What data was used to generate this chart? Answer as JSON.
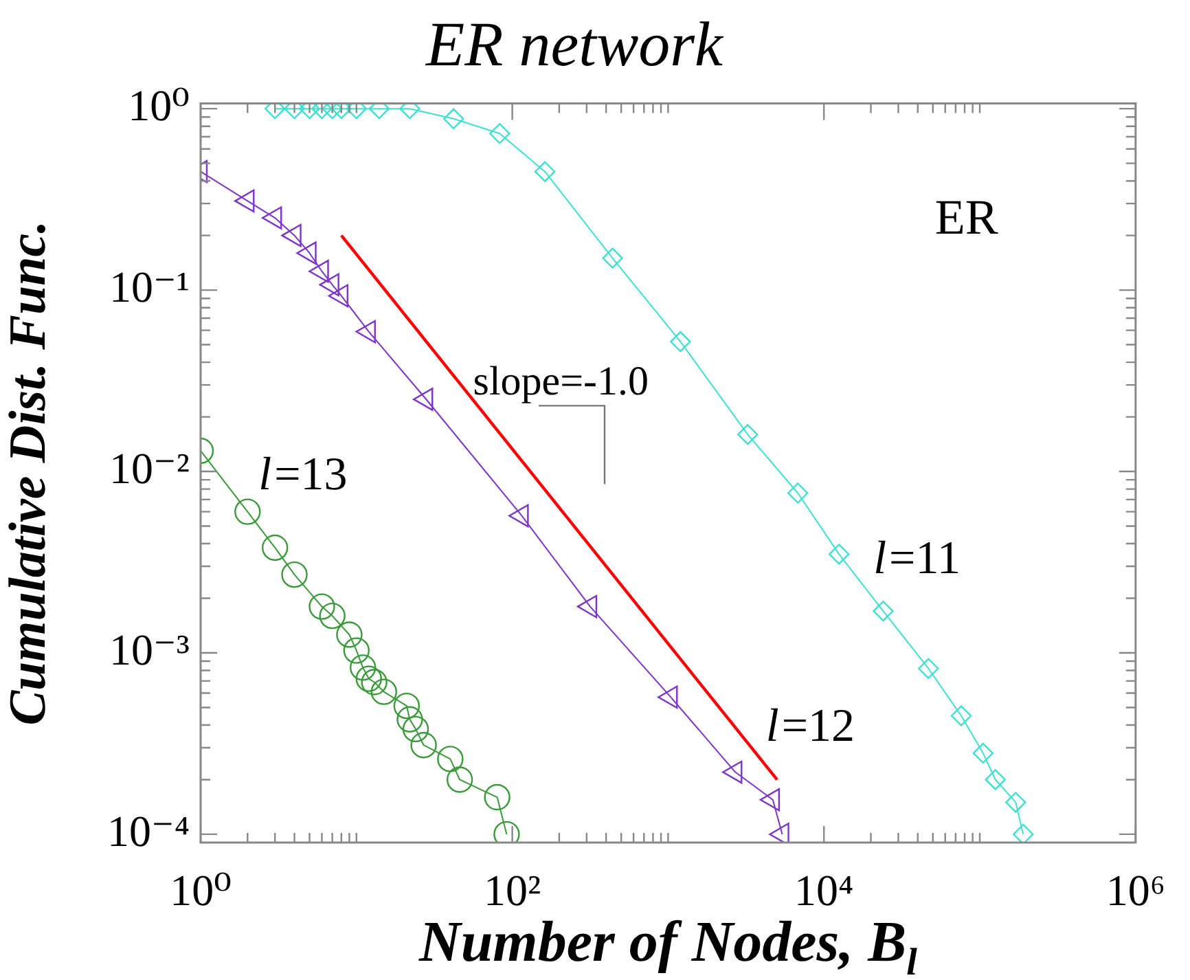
{
  "chart_data": {
    "type": "line",
    "title": "ER network",
    "xlabel": "Number of Nodes, B$_{l}$",
    "ylabel": "Cumulative Dist. Func.",
    "log": "xy",
    "grid": false,
    "legend": false,
    "line_style": "solid",
    "xlim": [
      1,
      1000000
    ],
    "ylim": [
      9e-05,
      1.07
    ],
    "xticks": [
      {
        "value": 1,
        "label": "10⁰"
      },
      {
        "value": 2,
        "label": null
      },
      {
        "value": 3,
        "label": null
      },
      {
        "value": 4,
        "label": null
      },
      {
        "value": 5,
        "label": null
      },
      {
        "value": 6,
        "label": null
      },
      {
        "value": 7,
        "label": null
      },
      {
        "value": 8,
        "label": null
      },
      {
        "value": 9,
        "label": null
      },
      {
        "value": 10,
        "label": null
      },
      {
        "value": 100,
        "label": "10²"
      },
      {
        "value": 200,
        "label": null
      },
      {
        "value": 300,
        "label": null
      },
      {
        "value": 400,
        "label": null
      },
      {
        "value": 500,
        "label": null
      },
      {
        "value": 600,
        "label": null
      },
      {
        "value": 700,
        "label": null
      },
      {
        "value": 800,
        "label": null
      },
      {
        "value": 900,
        "label": null
      },
      {
        "value": 1000,
        "label": null
      },
      {
        "value": 10000,
        "label": "10⁴"
      },
      {
        "value": 20000,
        "label": null
      },
      {
        "value": 30000,
        "label": null
      },
      {
        "value": 40000,
        "label": null
      },
      {
        "value": 50000,
        "label": null
      },
      {
        "value": 60000,
        "label": null
      },
      {
        "value": 70000,
        "label": null
      },
      {
        "value": 80000,
        "label": null
      },
      {
        "value": 90000,
        "label": null
      },
      {
        "value": 100000,
        "label": null
      },
      {
        "value": 1000000,
        "label": "10⁶"
      }
    ],
    "yticks": [
      {
        "value": 0.0001,
        "label": "10⁻⁴"
      },
      {
        "value": 0.0002,
        "label": null
      },
      {
        "value": 0.0003,
        "label": null
      },
      {
        "value": 0.0004,
        "label": null
      },
      {
        "value": 0.0005,
        "label": null
      },
      {
        "value": 0.0006,
        "label": null
      },
      {
        "value": 0.0007,
        "label": null
      },
      {
        "value": 0.0008,
        "label": null
      },
      {
        "value": 0.0009,
        "label": null
      },
      {
        "value": 0.001,
        "label": "10⁻³"
      },
      {
        "value": 0.002,
        "label": null
      },
      {
        "value": 0.003,
        "label": null
      },
      {
        "value": 0.004,
        "label": null
      },
      {
        "value": 0.005,
        "label": null
      },
      {
        "value": 0.006,
        "label": null
      },
      {
        "value": 0.007,
        "label": null
      },
      {
        "value": 0.008,
        "label": null
      },
      {
        "value": 0.009,
        "label": null
      },
      {
        "value": 0.01,
        "label": "10⁻²"
      },
      {
        "value": 0.02,
        "label": null
      },
      {
        "value": 0.03,
        "label": null
      },
      {
        "value": 0.04,
        "label": null
      },
      {
        "value": 0.05,
        "label": null
      },
      {
        "value": 0.06,
        "label": null
      },
      {
        "value": 0.07,
        "label": null
      },
      {
        "value": 0.08,
        "label": null
      },
      {
        "value": 0.09,
        "label": null
      },
      {
        "value": 0.1,
        "label": "10⁻¹"
      },
      {
        "value": 0.2,
        "label": null
      },
      {
        "value": 0.3,
        "label": null
      },
      {
        "value": 0.4,
        "label": null
      },
      {
        "value": 0.5,
        "label": null
      },
      {
        "value": 0.6,
        "label": null
      },
      {
        "value": 0.7,
        "label": null
      },
      {
        "value": 0.8,
        "label": null
      },
      {
        "value": 0.9,
        "label": null
      },
      {
        "value": 1,
        "label": "10⁰"
      }
    ],
    "series": [
      {
        "name": "l=11",
        "color": "#40e0d0",
        "marker": "diamond",
        "x": [
          3,
          4,
          5,
          6,
          7,
          8,
          10,
          14,
          22,
          42,
          83,
          162,
          440,
          1200,
          3240,
          6800,
          12500,
          24000,
          46800,
          76000,
          105000,
          126000,
          170000,
          190000
        ],
        "values": [
          1,
          1,
          1,
          1,
          1,
          1,
          1,
          1,
          1,
          0.88,
          0.73,
          0.45,
          0.15,
          0.052,
          0.016,
          0.0076,
          0.0035,
          0.0017,
          0.00082,
          0.00045,
          0.00028,
          0.0002,
          0.00015,
          0.0001
        ]
      },
      {
        "name": "l=12",
        "color": "#7b35c8",
        "marker": "triangle",
        "x": [
          1,
          2,
          3,
          4,
          5,
          6,
          7,
          8,
          12,
          28,
          115,
          316,
          1040,
          2700,
          4700,
          5400
        ],
        "values": [
          0.45,
          0.31,
          0.25,
          0.2,
          0.16,
          0.127,
          0.107,
          0.093,
          0.059,
          0.025,
          0.0057,
          0.0018,
          0.00057,
          0.00022,
          0.000155,
          0.0001
        ]
      },
      {
        "name": "l=13",
        "color": "#3a9a3a",
        "marker": "circle",
        "x": [
          1,
          2,
          3,
          4,
          6,
          7,
          9,
          10,
          11,
          12,
          13,
          15,
          21,
          22,
          24,
          27,
          40,
          46,
          80,
          92
        ],
        "values": [
          0.013,
          0.006,
          0.0038,
          0.0027,
          0.0018,
          0.0016,
          0.00126,
          0.00103,
          0.00083,
          0.00072,
          0.00069,
          0.00061,
          0.00051,
          0.00043,
          0.00038,
          0.00031,
          0.00026,
          0.0002,
          0.00016,
          0.0001
        ]
      },
      {
        "type": "line",
        "color": "#ff0000",
        "marker": "none",
        "x": [
          8,
          5000
        ],
        "values": [
          0.2,
          0.0002
        ]
      }
    ],
    "annotations": [
      "ER",
      "slope=-1.0"
    ]
  }
}
